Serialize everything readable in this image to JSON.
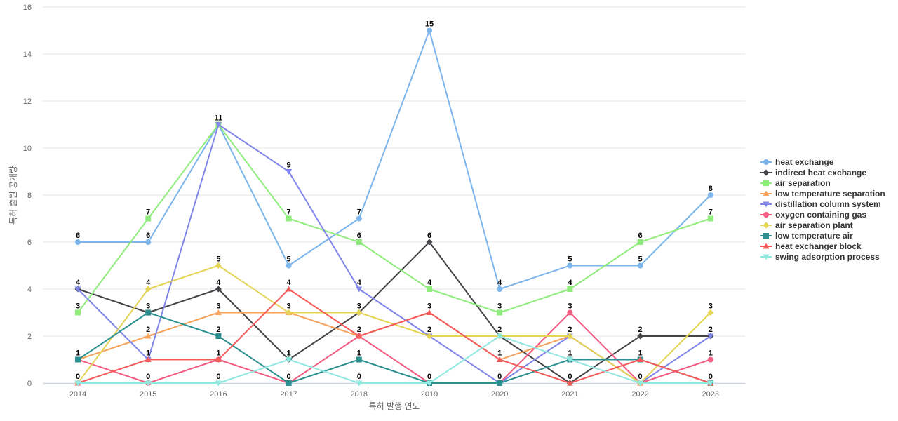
{
  "chart_data": {
    "type": "line",
    "title": "",
    "xlabel": "특허 발행 연도",
    "ylabel": "특허 출원 공개량",
    "ylim": [
      0,
      16
    ],
    "yticks": [
      0,
      2,
      4,
      6,
      8,
      10,
      12,
      14,
      16
    ],
    "grid": true,
    "legend_position": "right",
    "categories": [
      "2014",
      "2015",
      "2016",
      "2017",
      "2018",
      "2019",
      "2020",
      "2021",
      "2022",
      "2023"
    ],
    "series": [
      {
        "name": "heat exchange",
        "color": "#7cb5ec",
        "marker": "circle",
        "values": [
          6,
          6,
          11,
          5,
          7,
          15,
          4,
          5,
          5,
          8
        ]
      },
      {
        "name": "indirect heat exchange",
        "color": "#434348",
        "marker": "diamond",
        "values": [
          4,
          3,
          4,
          1,
          3,
          6,
          2,
          0,
          2,
          2
        ]
      },
      {
        "name": "air separation",
        "color": "#90ed7d",
        "marker": "square",
        "values": [
          3,
          7,
          11,
          7,
          6,
          4,
          3,
          4,
          6,
          7
        ]
      },
      {
        "name": "low temperature separation",
        "color": "#f7a35c",
        "marker": "triangle",
        "values": [
          1,
          2,
          3,
          3,
          2,
          3,
          1,
          2,
          0,
          0
        ]
      },
      {
        "name": "distillation column system",
        "color": "#8085e9",
        "marker": "triangle-down",
        "values": [
          4,
          1,
          11,
          9,
          4,
          2,
          0,
          2,
          0,
          2
        ]
      },
      {
        "name": "oxygen containing gas",
        "color": "#f15c80",
        "marker": "circle",
        "values": [
          1,
          0,
          1,
          0,
          2,
          0,
          0,
          3,
          0,
          1
        ]
      },
      {
        "name": "air separation plant",
        "color": "#e4d354",
        "marker": "diamond",
        "values": [
          0,
          4,
          5,
          3,
          3,
          2,
          2,
          2,
          0,
          3
        ]
      },
      {
        "name": "low temperature air",
        "color": "#2b908f",
        "marker": "square",
        "values": [
          1,
          3,
          2,
          0,
          1,
          0,
          0,
          1,
          1,
          0
        ]
      },
      {
        "name": "heat exchanger block",
        "color": "#f45b5b",
        "marker": "triangle",
        "values": [
          0,
          1,
          1,
          4,
          2,
          3,
          1,
          0,
          1,
          0
        ]
      },
      {
        "name": "swing adsorption process",
        "color": "#91e8e1",
        "marker": "triangle-down",
        "values": [
          0,
          0,
          0,
          1,
          0,
          0,
          2,
          1,
          0,
          0
        ]
      }
    ],
    "data_labels": [
      {
        "category": "2014",
        "values": [
          6,
          4,
          3,
          1,
          0
        ]
      },
      {
        "category": "2015",
        "values": [
          7,
          6,
          4,
          3,
          2,
          1,
          0
        ]
      },
      {
        "category": "2016",
        "values": [
          11,
          5,
          4,
          3,
          2,
          1,
          0
        ]
      },
      {
        "category": "2017",
        "values": [
          9,
          7,
          5,
          4,
          3,
          1,
          0
        ]
      },
      {
        "category": "2018",
        "values": [
          7,
          6,
          4,
          3,
          2,
          1,
          0
        ]
      },
      {
        "category": "2019",
        "values": [
          15,
          6,
          4,
          3,
          2,
          0
        ]
      },
      {
        "category": "2020",
        "values": [
          4,
          3,
          2,
          1,
          0
        ]
      },
      {
        "category": "2021",
        "values": [
          5,
          4,
          3,
          2,
          1,
          0
        ]
      },
      {
        "category": "2022",
        "values": [
          6,
          5,
          2,
          1,
          0
        ]
      },
      {
        "category": "2023",
        "values": [
          8,
          7,
          3,
          2,
          1,
          0
        ]
      }
    ]
  }
}
